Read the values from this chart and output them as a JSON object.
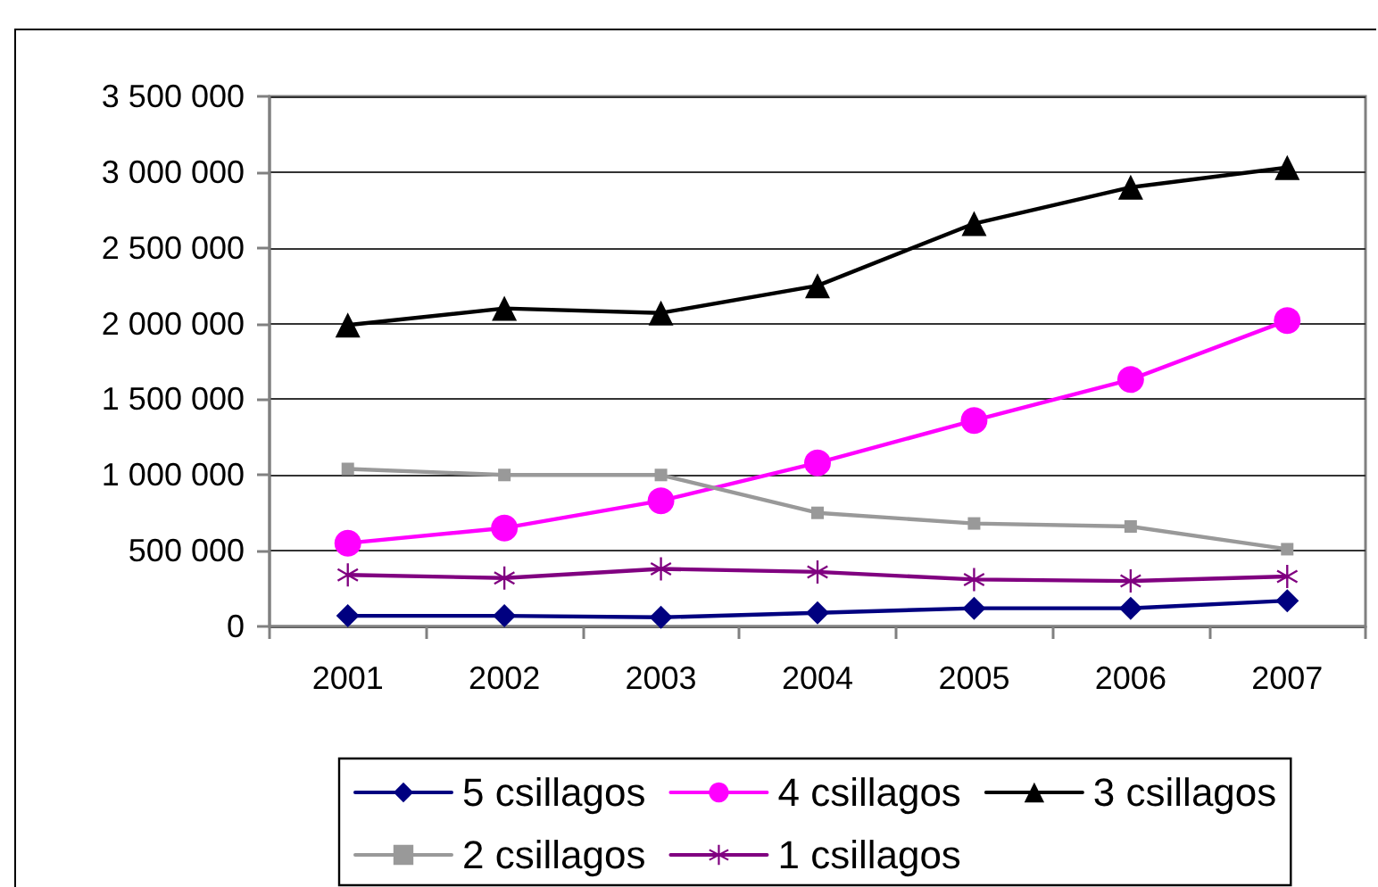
{
  "chart_data": {
    "type": "line",
    "categories": [
      "2001",
      "2002",
      "2003",
      "2004",
      "2005",
      "2006",
      "2007"
    ],
    "series": [
      {
        "name": "5 csillagos",
        "color": "#000080",
        "marker": "diamond",
        "values": [
          70000,
          70000,
          60000,
          90000,
          120000,
          120000,
          170000
        ]
      },
      {
        "name": "4 csillagos",
        "color": "#ff00ff",
        "marker": "circle",
        "values": [
          550000,
          650000,
          830000,
          1080000,
          1360000,
          1630000,
          2020000
        ]
      },
      {
        "name": "3 csillagos",
        "color": "#000000",
        "marker": "triangle",
        "values": [
          1990000,
          2100000,
          2070000,
          2250000,
          2660000,
          2900000,
          3030000
        ]
      },
      {
        "name": "2 csillagos",
        "color": "#999999",
        "marker": "square",
        "values": [
          1040000,
          1000000,
          1000000,
          750000,
          680000,
          660000,
          510000
        ]
      },
      {
        "name": "1 csillagos",
        "color": "#800080",
        "marker": "cross",
        "values": [
          340000,
          320000,
          380000,
          360000,
          310000,
          300000,
          330000
        ]
      }
    ],
    "ylim": [
      0,
      3500000
    ],
    "yticks": [
      0,
      {
        "value": 500000,
        "label": "500 000"
      },
      {
        "value": 1000000,
        "label": "1 000 000"
      },
      {
        "value": 1500000,
        "label": "1 500 000"
      },
      {
        "value": 2000000,
        "label": "2 000 000"
      },
      {
        "value": 2500000,
        "label": "2 500 000"
      },
      {
        "value": 3000000,
        "label": "3 000 000"
      },
      {
        "value": 3500000,
        "label": "3 500 000"
      }
    ],
    "grid": "y",
    "legend": "bottom",
    "line_style": "solid"
  }
}
